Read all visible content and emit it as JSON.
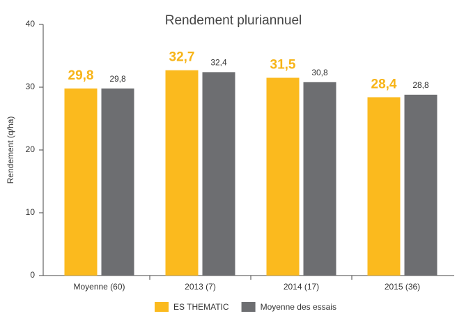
{
  "chart_data": {
    "type": "bar",
    "title": "Rendement pluriannuel",
    "y_label": "Rendement (q/ha)",
    "categories": [
      "Moyenne (60)",
      "2013 (7)",
      "2014 (17)",
      "2015 (36)"
    ],
    "series": [
      {
        "name": "ES THEMATIC",
        "color": "#fbba1e",
        "values": [
          29.8,
          32.7,
          31.5,
          28.4
        ],
        "value_labels": [
          "29,8",
          "32,7",
          "31,5",
          "28,4"
        ]
      },
      {
        "name": "Moyenne des essais",
        "color": "#6d6e71",
        "values": [
          29.8,
          32.4,
          30.8,
          28.8
        ],
        "value_labels": [
          "29,8",
          "32,4",
          "30,8",
          "28,8"
        ]
      }
    ],
    "ylim": [
      0,
      40
    ],
    "yticks": [
      0,
      10,
      20,
      30,
      40
    ],
    "legend": "bottom"
  }
}
